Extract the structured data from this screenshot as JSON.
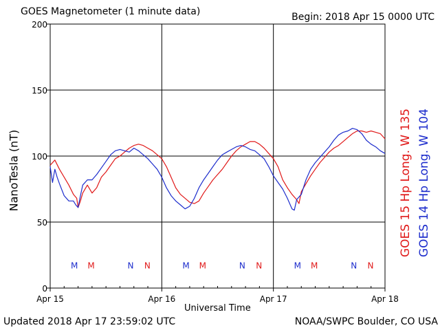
{
  "header": {
    "title": "GOES Magnetometer (1 minute data)",
    "begin": "Begin:  2018 Apr 15 0000 UTC"
  },
  "footer": {
    "updated": "Updated 2018 Apr 17 23:59:02 UTC",
    "credit": "NOAA/SWPC Boulder, CO USA"
  },
  "colors": {
    "goes15": "#e01818",
    "goes14": "#1c2ccc"
  },
  "chart_data": {
    "type": "line",
    "title": "GOES Magnetometer (1 minute data)",
    "xlabel": "Universal Time",
    "ylabel": "NanoTesla (nT)",
    "xlim": [
      0,
      72
    ],
    "ylim": [
      0,
      200
    ],
    "grid": true,
    "y_ticks": [
      0,
      50,
      100,
      150,
      200
    ],
    "x_ticks": [
      {
        "label": "Apr 15",
        "hour": 0
      },
      {
        "label": "Apr 16",
        "hour": 24
      },
      {
        "label": "Apr 17",
        "hour": 48
      },
      {
        "label": "Apr 18",
        "hour": 72
      }
    ],
    "legend": [
      {
        "label": "GOES 15 Hp  Long. W 135",
        "color": "#e01818"
      },
      {
        "label": "GOES 14 Hp  Long. W 104",
        "color": "#1c2ccc"
      }
    ],
    "series": [
      {
        "name": "GOES 15 Hp  Long. W 135",
        "color": "#e01818",
        "x": [
          0,
          1,
          2,
          3,
          4,
          5,
          5.7,
          6,
          6.5,
          7,
          8,
          9,
          10,
          11,
          12,
          13,
          14,
          15,
          16,
          17,
          18,
          19,
          20,
          21,
          22,
          23,
          24,
          25,
          26,
          27,
          28,
          29,
          30,
          31,
          32,
          33,
          34,
          35,
          36,
          37,
          38,
          39,
          40,
          41,
          42,
          43,
          44,
          45,
          46,
          47,
          48,
          49,
          50,
          51,
          52,
          53,
          53.5,
          54,
          55,
          56,
          57,
          58,
          59,
          60,
          61,
          62,
          63,
          64,
          65,
          66,
          67,
          68,
          69,
          70,
          71,
          72
        ],
        "y": [
          93,
          97,
          90,
          84,
          78,
          71,
          68,
          61,
          66,
          72,
          78,
          72,
          76,
          84,
          88,
          93,
          98,
          100,
          103,
          106,
          108,
          109,
          108,
          106,
          104,
          101,
          98,
          92,
          84,
          76,
          71,
          68,
          65,
          64,
          66,
          72,
          77,
          82,
          86,
          90,
          95,
          100,
          104,
          107,
          109,
          111,
          111,
          109,
          106,
          102,
          98,
          92,
          82,
          76,
          71,
          67,
          64,
          73,
          79,
          85,
          90,
          95,
          99,
          103,
          106,
          108,
          111,
          114,
          117,
          119,
          119,
          118,
          119,
          118,
          117,
          113
        ]
      },
      {
        "name": "GOES 14 Hp  Long. W 104",
        "color": "#1c2ccc",
        "x": [
          0,
          0.5,
          1,
          1.5,
          2,
          3,
          4,
          5,
          5.5,
          6,
          6.5,
          7,
          8,
          9,
          10,
          11,
          12,
          13,
          14,
          15,
          16,
          17,
          18,
          19,
          20,
          21,
          22,
          23,
          24,
          25,
          26,
          27,
          28,
          29,
          30,
          31,
          32,
          33,
          34,
          35,
          36,
          37,
          38,
          39,
          40,
          41,
          42,
          43,
          44,
          45,
          46,
          47,
          48,
          49,
          50,
          51,
          52,
          52.5,
          53,
          54,
          55,
          56,
          57,
          58,
          59,
          60,
          61,
          62,
          63,
          64,
          65,
          66,
          67,
          68,
          69,
          70,
          71,
          72
        ],
        "y": [
          92,
          80,
          90,
          84,
          79,
          70,
          66,
          66,
          63,
          61,
          70,
          78,
          82,
          82,
          86,
          91,
          96,
          101,
          104,
          105,
          104,
          103,
          106,
          104,
          101,
          98,
          94,
          90,
          84,
          76,
          70,
          66,
          63,
          60,
          62,
          68,
          76,
          82,
          87,
          92,
          97,
          101,
          103,
          105,
          107,
          108,
          107,
          105,
          104,
          101,
          98,
          92,
          85,
          80,
          75,
          68,
          60,
          59,
          67,
          71,
          82,
          90,
          95,
          99,
          103,
          107,
          112,
          116,
          118,
          119,
          121,
          120,
          117,
          112,
          109,
          107,
          104,
          102
        ]
      }
    ],
    "annotations": [
      {
        "text": "M",
        "hour": 5.2,
        "y": 17,
        "color": "#1c2ccc"
      },
      {
        "text": "M",
        "hour": 8.8,
        "y": 17,
        "color": "#e01818"
      },
      {
        "text": "N",
        "hour": 17.3,
        "y": 17,
        "color": "#1c2ccc"
      },
      {
        "text": "N",
        "hour": 20.9,
        "y": 17,
        "color": "#e01818"
      },
      {
        "text": "M",
        "hour": 29.2,
        "y": 17,
        "color": "#1c2ccc"
      },
      {
        "text": "M",
        "hour": 32.8,
        "y": 17,
        "color": "#e01818"
      },
      {
        "text": "N",
        "hour": 41.3,
        "y": 17,
        "color": "#1c2ccc"
      },
      {
        "text": "N",
        "hour": 44.9,
        "y": 17,
        "color": "#e01818"
      },
      {
        "text": "M",
        "hour": 53.2,
        "y": 17,
        "color": "#1c2ccc"
      },
      {
        "text": "M",
        "hour": 56.8,
        "y": 17,
        "color": "#e01818"
      },
      {
        "text": "N",
        "hour": 65.3,
        "y": 17,
        "color": "#1c2ccc"
      },
      {
        "text": "N",
        "hour": 68.9,
        "y": 17,
        "color": "#e01818"
      }
    ]
  }
}
